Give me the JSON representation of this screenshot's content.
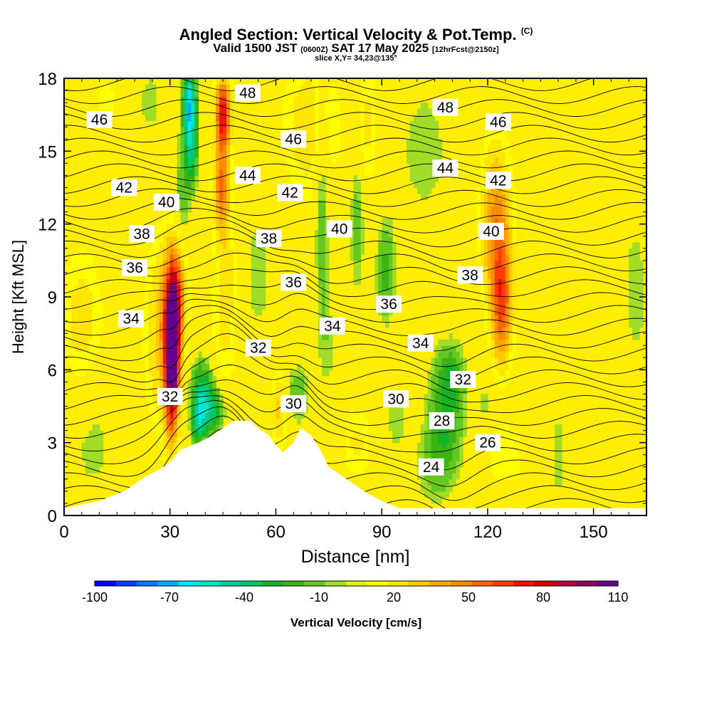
{
  "figure": {
    "title": "Angled Section: Vertical Velocity & Pot.Temp.",
    "title_tag": "(C)",
    "valid_a": "Valid 1500 JST",
    "valid_b": "(0600Z)",
    "valid_c": "SAT 17 May 2025",
    "valid_d": "[12hrFcst@2150z]",
    "slice": "slice X,Y= 34,23@135°"
  },
  "chart_data": {
    "type": "heatmap",
    "xlabel": "Distance [nm]",
    "ylabel": "Height [Kft MSL]",
    "xlim": [
      0,
      165
    ],
    "ylim": [
      0,
      18
    ],
    "xticks": [
      0,
      30,
      60,
      90,
      120,
      150
    ],
    "yticks": [
      0,
      3,
      6,
      9,
      12,
      15,
      18
    ],
    "colorbar": {
      "label": "Vertical Velocity [cm/s]",
      "ticks": [
        -100,
        -70,
        -40,
        -10,
        20,
        50,
        80,
        110
      ],
      "colors": [
        "#0000ff",
        "#0a3cff",
        "#0078ff",
        "#00aaff",
        "#00e6ff",
        "#00e6c8",
        "#00cc96",
        "#00c864",
        "#14b428",
        "#3cb414",
        "#64c81e",
        "#a0dc28",
        "#dcf01e",
        "#ffff00",
        "#ffe600",
        "#ffc800",
        "#ffaa00",
        "#ff8c00",
        "#ff6400",
        "#ff3c00",
        "#f01400",
        "#d20000",
        "#b4003c",
        "#8c0064",
        "#64008c"
      ]
    },
    "terrain": [
      [
        0,
        0.3
      ],
      [
        10,
        0.6
      ],
      [
        17,
        1
      ],
      [
        20,
        1.3
      ],
      [
        23,
        1.6
      ],
      [
        27,
        1.9
      ],
      [
        30,
        2.2
      ],
      [
        33,
        2.7
      ],
      [
        38,
        3
      ],
      [
        42,
        3.3
      ],
      [
        45,
        3.6
      ],
      [
        48,
        3.9
      ],
      [
        53,
        3.9
      ],
      [
        55,
        3.6
      ],
      [
        58,
        3.3
      ],
      [
        60,
        2.9
      ],
      [
        62,
        2.6
      ],
      [
        65,
        3
      ],
      [
        67,
        3.6
      ],
      [
        70,
        3.3
      ],
      [
        73,
        2.6
      ],
      [
        75,
        2
      ],
      [
        78,
        1.7
      ],
      [
        82,
        1.3
      ],
      [
        85,
        1
      ],
      [
        90,
        0.6
      ],
      [
        95,
        0.3
      ],
      [
        165,
        0.3
      ]
    ],
    "pot_temp_labels": [
      {
        "label": "46",
        "x": 10,
        "y": 16.3
      },
      {
        "label": "48",
        "x": 52,
        "y": 17.4
      },
      {
        "label": "46",
        "x": 65,
        "y": 15.5
      },
      {
        "label": "48",
        "x": 108,
        "y": 16.8
      },
      {
        "label": "46",
        "x": 123,
        "y": 16.2
      },
      {
        "label": "44",
        "x": 52,
        "y": 14
      },
      {
        "label": "44",
        "x": 108,
        "y": 14.3
      },
      {
        "label": "42",
        "x": 17,
        "y": 13.5
      },
      {
        "label": "42",
        "x": 64,
        "y": 13.3
      },
      {
        "label": "42",
        "x": 123,
        "y": 13.8
      },
      {
        "label": "40",
        "x": 29,
        "y": 12.9
      },
      {
        "label": "40",
        "x": 78,
        "y": 11.8
      },
      {
        "label": "40",
        "x": 121,
        "y": 11.7
      },
      {
        "label": "38",
        "x": 22,
        "y": 11.6
      },
      {
        "label": "38",
        "x": 58,
        "y": 11.4
      },
      {
        "label": "38",
        "x": 115,
        "y": 9.9
      },
      {
        "label": "36",
        "x": 20,
        "y": 10.2
      },
      {
        "label": "36",
        "x": 65,
        "y": 9.6
      },
      {
        "label": "36",
        "x": 92,
        "y": 8.7
      },
      {
        "label": "34",
        "x": 19,
        "y": 8.1
      },
      {
        "label": "34",
        "x": 76,
        "y": 7.8
      },
      {
        "label": "34",
        "x": 101,
        "y": 7.1
      },
      {
        "label": "32",
        "x": 55,
        "y": 6.9
      },
      {
        "label": "32",
        "x": 113,
        "y": 5.6
      },
      {
        "label": "32",
        "x": 30,
        "y": 4.9
      },
      {
        "label": "30",
        "x": 65,
        "y": 4.6
      },
      {
        "label": "30",
        "x": 94,
        "y": 4.8
      },
      {
        "label": "28",
        "x": 107,
        "y": 3.9
      },
      {
        "label": "26",
        "x": 120,
        "y": 3
      },
      {
        "label": "24",
        "x": 104,
        "y": 2
      }
    ]
  }
}
